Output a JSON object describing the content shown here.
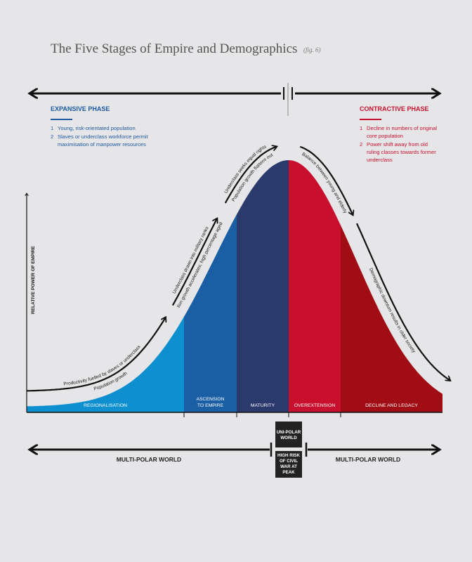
{
  "header": {
    "title": "The Five Stages of Empire and Demographics",
    "fig": "(fig. 6)"
  },
  "expansive": {
    "heading": "EXPANSIVE PHASE",
    "items": [
      {
        "num": "1",
        "lines": [
          "Young, risk-orientated population"
        ]
      },
      {
        "num": "2",
        "lines": [
          "Slaves or underclass workforce permit",
          "maximisation of manpower resources"
        ]
      }
    ]
  },
  "contractive": {
    "heading": "CONTRACTIVE PHASE",
    "items": [
      {
        "num": "1",
        "lines": [
          "Decline in numbers of original",
          "core population"
        ]
      },
      {
        "num": "2",
        "lines": [
          "Power shift away from old",
          "ruling classes towards former",
          "underclass"
        ]
      }
    ]
  },
  "y_axis_label": "RELATIVE POWER OF EMPIRE",
  "stages": [
    {
      "lines": [
        "REGIONALISATION"
      ]
    },
    {
      "lines": [
        "ASCENSION",
        "TO EMPIRE"
      ]
    },
    {
      "lines": [
        "MATURITY"
      ]
    },
    {
      "lines": [
        "OVEREXTENSION"
      ]
    },
    {
      "lines": [
        "DECLINE AND LEGACY"
      ]
    }
  ],
  "annotations": [
    {
      "above": "Productivity fuelled by slaves or underclass",
      "below": "Population growth"
    },
    {
      "above": "Underclass drawn into military ranks",
      "below": "Population growth accelerates; high percentage aged 16–30"
    },
    {
      "above": "Underclass seeks equal rights",
      "below": "Population growth flattens out"
    },
    {
      "below": "Balance between young and elderly"
    },
    {
      "below": "Demographic downturn results in older society"
    }
  ],
  "bottom": {
    "left": "MULTI-POLAR WORLD",
    "right": "MULTI-POLAR WORLD",
    "center_top": [
      "UNI-POLAR",
      "WORLD"
    ],
    "center_bottom": [
      "HIGH RISK",
      "OF CIVIL",
      "WAR AT",
      "PEAK"
    ]
  }
}
